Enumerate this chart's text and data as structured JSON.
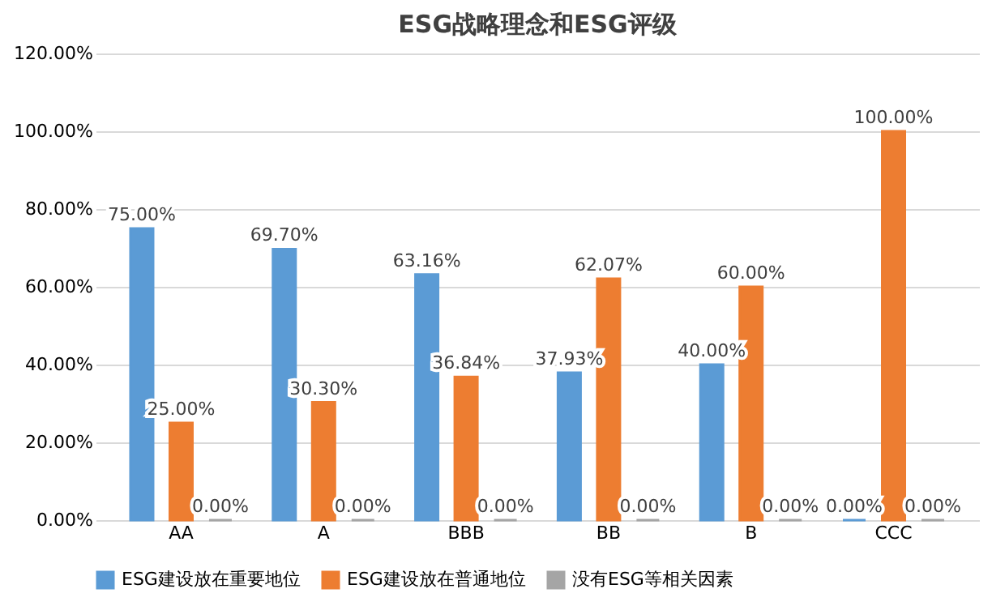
{
  "chart_data": {
    "type": "bar",
    "title": "ESG战略理念和ESG评级",
    "categories": [
      "AA",
      "A",
      "BBB",
      "BB",
      "B",
      "CCC"
    ],
    "series": [
      {
        "name": "ESG建设放在重要地位",
        "color": "#5b9bd5",
        "values": [
          75,
          69.7,
          63.16,
          37.93,
          40,
          0
        ],
        "value_labels": [
          "75.00%",
          "69.70%",
          "63.16%",
          "37.93%",
          "40.00%",
          "0.00%"
        ]
      },
      {
        "name": "ESG建设放在普通地位",
        "color": "#ed7d31",
        "values": [
          25,
          30.3,
          36.84,
          62.07,
          60,
          100
        ],
        "value_labels": [
          "25.00%",
          "30.30%",
          "36.84%",
          "62.07%",
          "60.00%",
          "100.00%"
        ]
      },
      {
        "name": "没有ESG等相关因素",
        "color": "#a5a5a5",
        "values": [
          0,
          0,
          0,
          0,
          0,
          0
        ],
        "value_labels": [
          "0.00%",
          "0.00%",
          "0.00%",
          "0.00%",
          "0.00%",
          "0.00%"
        ]
      }
    ],
    "ylim": [
      0,
      120
    ],
    "yticks": [
      {
        "value": 0,
        "label": "0.00%"
      },
      {
        "value": 20,
        "label": "20.00%"
      },
      {
        "value": 40,
        "label": "40.00%"
      },
      {
        "value": 60,
        "label": "60.00%"
      },
      {
        "value": 80,
        "label": "80.00%"
      },
      {
        "value": 100,
        "label": "100.00%"
      },
      {
        "value": 120,
        "label": "120.00%"
      }
    ],
    "grid": "y",
    "legend": "bottom"
  }
}
